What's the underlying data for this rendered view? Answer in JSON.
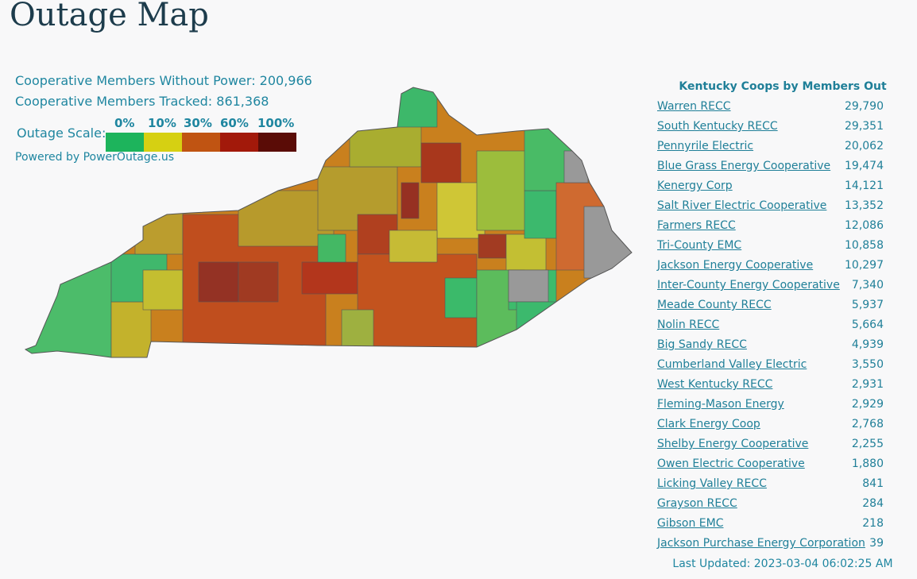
{
  "header": {
    "title": "Outage Map"
  },
  "stats": {
    "without_power": "Cooperative Members Without Power: 200,966",
    "tracked": "Cooperative Members Tracked: 861,368"
  },
  "scale": {
    "label": "Outage Scale:",
    "ticks": [
      "0%",
      "10%",
      "30%",
      "60%",
      "100%"
    ]
  },
  "powered_by": "Powered by PowerOutage.us",
  "table": {
    "title": "Kentucky Coops by Members Out",
    "rows": [
      [
        "Warren RECC",
        "29,790"
      ],
      [
        "South Kentucky RECC",
        "29,351"
      ],
      [
        "Pennyrile Electric",
        "20,062"
      ],
      [
        "Blue Grass Energy Cooperative",
        "19,474"
      ],
      [
        "Kenergy Corp",
        "14,121"
      ],
      [
        "Salt River Electric Cooperative",
        "13,352"
      ],
      [
        "Farmers RECC",
        "12,086"
      ],
      [
        "Tri-County EMC",
        "10,858"
      ],
      [
        "Jackson Energy Cooperative",
        "10,297"
      ],
      [
        "Inter-County Energy Cooperative",
        "7,340"
      ],
      [
        "Meade County RECC",
        "5,937"
      ],
      [
        "Nolin RECC",
        "5,664"
      ],
      [
        "Big Sandy RECC",
        "4,939"
      ],
      [
        "Cumberland Valley Electric",
        "3,550"
      ],
      [
        "West Kentucky RECC",
        "2,931"
      ],
      [
        "Fleming-Mason Energy",
        "2,929"
      ],
      [
        "Clark Energy Coop",
        "2,768"
      ],
      [
        "Shelby Energy Cooperative",
        "2,255"
      ],
      [
        "Owen Electric Cooperative",
        "1,880"
      ],
      [
        "Licking Valley RECC",
        "841"
      ],
      [
        "Grayson RECC",
        "284"
      ],
      [
        "Gibson EMC",
        "218"
      ],
      [
        "Jackson Purchase Energy Corporation",
        "39"
      ]
    ]
  },
  "last_updated": "Last Updated: 2023-03-04 06:02:25 AM"
}
